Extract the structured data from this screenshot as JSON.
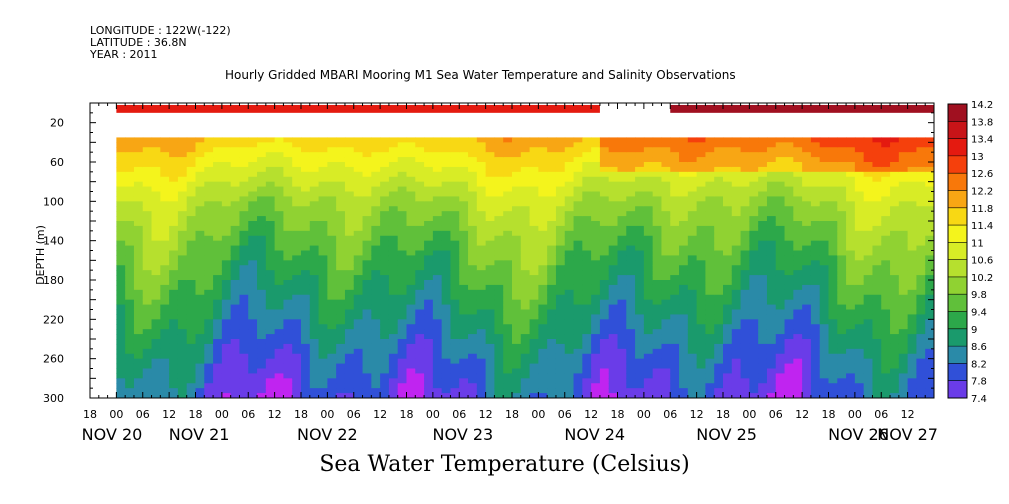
{
  "header": {
    "longitude": "LONGITUDE : 122W(-122)",
    "latitude": "LATITUDE : 36.8N",
    "year": "YEAR : 2011"
  },
  "chart_data": {
    "type": "heatmap",
    "title": "Hourly Gridded MBARI Mooring M1 Sea Water Temperature and Salinity Observations",
    "xlabel": "Sea Water Temperature (Celsius)",
    "ylabel": "DEPTH (m)",
    "x_range_hours": [
      -6,
      186
    ],
    "ylim": [
      300,
      0
    ],
    "y_ticks": [
      20,
      60,
      100,
      140,
      180,
      220,
      260,
      300
    ],
    "x_hour_ticks": [
      "18",
      "00",
      "06",
      "12",
      "18",
      "00",
      "06",
      "12",
      "18",
      "00",
      "06",
      "12",
      "18",
      "00",
      "06",
      "12",
      "18",
      "00",
      "06",
      "12",
      "18",
      "00",
      "06",
      "12",
      "18",
      "00",
      "06",
      "12",
      "18",
      "00",
      "06",
      "12"
    ],
    "date_labels": [
      "NOV 20",
      "NOV 21",
      "NOV 22",
      "NOV 23",
      "NOV 24",
      "NOV 25",
      "NOV 26",
      "NOV 27"
    ],
    "colorbar_levels": [
      "14.2",
      "13.8",
      "13.4",
      "13",
      "12.6",
      "12.2",
      "11.8",
      "11.4",
      "11",
      "10.6",
      "10.2",
      "9.8",
      "9.4",
      "9",
      "8.6",
      "8.2",
      "7.8",
      "7.4"
    ],
    "colorbar_colors": [
      "#a01020",
      "#c81418",
      "#e41a10",
      "#f5400c",
      "#f8780a",
      "#f8a614",
      "#f8d814",
      "#f4f41c",
      "#d8ec26",
      "#b6e02e",
      "#90d232",
      "#60c03a",
      "#2ca84a",
      "#1a9a6c",
      "#2a8aa8",
      "#3050d8",
      "#6a3ce8",
      "#c024f0"
    ],
    "surface_bands": [
      {
        "start_hour": 0,
        "end_hour": 110,
        "temperature": 13.0
      },
      {
        "start_hour": 126,
        "end_hour": 186,
        "temperature": 13.9
      }
    ],
    "profile": {
      "depths": [
        35,
        60,
        100,
        140,
        180,
        220,
        260,
        300
      ],
      "temperatures": [
        11.8,
        11.2,
        10.3,
        9.7,
        9.2,
        8.7,
        8.2,
        7.8
      ]
    }
  }
}
